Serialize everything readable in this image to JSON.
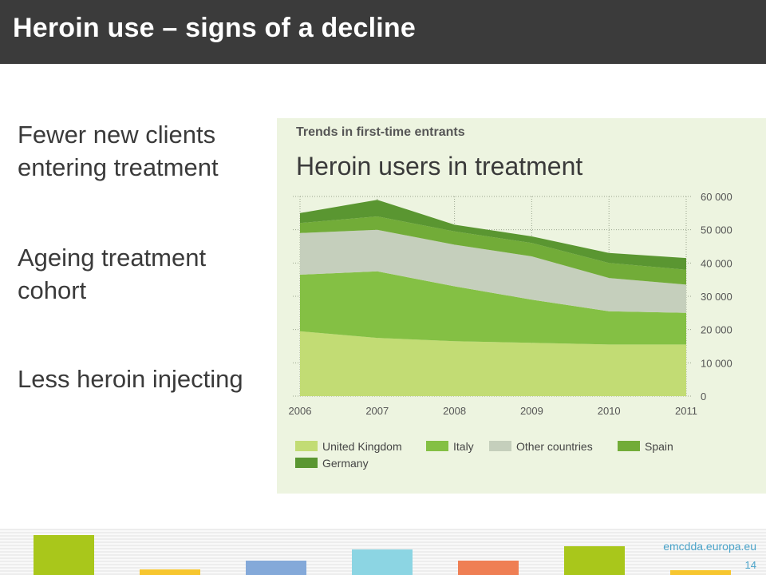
{
  "slide": {
    "title": "Heroin use – signs of a decline",
    "bullets": [
      "Fewer new clients entering treatment",
      "Ageing treatment cohort",
      "Less heroin injecting"
    ],
    "footer_url": "emcdda.europa.eu",
    "page_number": "14"
  },
  "colors": {
    "title_bar": "#3b3b3b",
    "panel_background": "#edf4e0",
    "footer_blocks": [
      "#a9c71b",
      "#f7c62f",
      "#84a9d9",
      "#8cd5e3",
      "#ef7f54",
      "#a9c71b",
      "#f7c62f"
    ]
  },
  "chart_data": {
    "type": "area",
    "stacked": true,
    "title": "Trends in first-time entrants",
    "subtitle": "Heroin users in treatment",
    "x": [
      "2006",
      "2007",
      "2008",
      "2009",
      "2010",
      "2011"
    ],
    "y_ticks": [
      "0",
      "10 000",
      "20 000",
      "30 000",
      "40 000",
      "50 000",
      "60 000"
    ],
    "ylim": [
      0,
      60000
    ],
    "y_axis_side": "right",
    "grid": "dotted",
    "legend_position": "bottom",
    "series": [
      {
        "name": "United Kingdom",
        "color": "#c2dc74",
        "values": [
          19500,
          17500,
          16500,
          16000,
          15500,
          15500
        ]
      },
      {
        "name": "Italy",
        "color": "#84c044",
        "values": [
          17000,
          20000,
          16500,
          13000,
          10000,
          9500
        ]
      },
      {
        "name": "Other countries",
        "color": "#c5cfbc",
        "values": [
          12500,
          12500,
          12500,
          13000,
          10000,
          8500
        ]
      },
      {
        "name": "Spain",
        "color": "#72ac38",
        "values": [
          3000,
          4000,
          4000,
          4000,
          4500,
          4500
        ]
      },
      {
        "name": "Germany",
        "color": "#5a9631",
        "values": [
          3000,
          5000,
          2000,
          2000,
          3000,
          3500
        ]
      }
    ]
  }
}
